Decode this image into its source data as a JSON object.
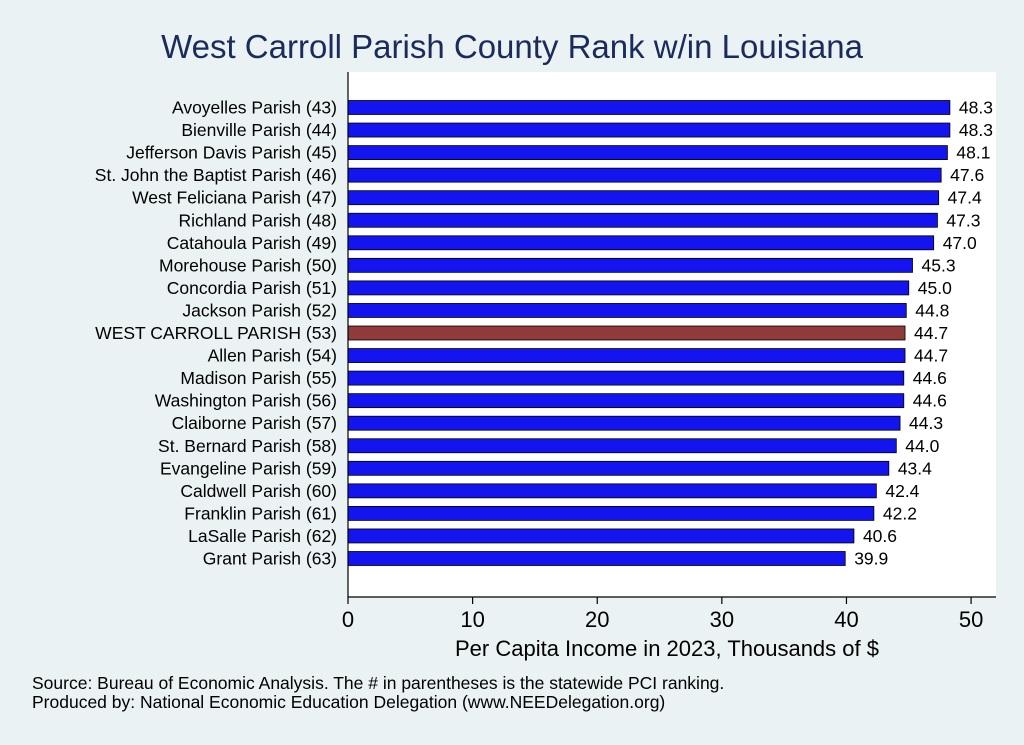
{
  "chart_data": {
    "type": "bar",
    "orientation": "horizontal",
    "title": "West Carroll Parish County Rank w/in Louisiana",
    "xlabel": "Per Capita Income in 2023, Thousands of $",
    "ylabel": "",
    "xlim": [
      0,
      52
    ],
    "xticks": [
      "0",
      "10",
      "20",
      "30",
      "40",
      "50"
    ],
    "categories": [
      "Avoyelles Parish (43)",
      "Bienville Parish (44)",
      "Jefferson Davis Parish (45)",
      "St. John the Baptist Parish (46)",
      "West Feliciana Parish (47)",
      "Richland Parish (48)",
      "Catahoula Parish (49)",
      "Morehouse Parish (50)",
      "Concordia Parish (51)",
      "Jackson Parish (52)",
      "WEST CARROLL PARISH (53)",
      "Allen Parish (54)",
      "Madison Parish (55)",
      "Washington Parish (56)",
      "Claiborne Parish (57)",
      "St. Bernard Parish (58)",
      "Evangeline Parish (59)",
      "Caldwell Parish (60)",
      "Franklin Parish (61)",
      "LaSalle Parish (62)",
      "Grant Parish (63)"
    ],
    "values": [
      48.3,
      48.3,
      48.1,
      47.6,
      47.4,
      47.3,
      47.0,
      45.3,
      45.0,
      44.8,
      44.7,
      44.7,
      44.6,
      44.6,
      44.3,
      44.0,
      43.4,
      42.4,
      42.2,
      40.6,
      39.9
    ],
    "value_labels": [
      "48.3",
      "48.3",
      "48.1",
      "47.6",
      "47.4",
      "47.3",
      "47.0",
      "45.3",
      "45.0",
      "44.8",
      "44.7",
      "44.7",
      "44.6",
      "44.6",
      "44.3",
      "44.0",
      "43.4",
      "42.4",
      "42.2",
      "40.6",
      "39.9"
    ],
    "highlight_index": 10,
    "colors": {
      "bar": "#1414f0",
      "highlight": "#8f3b3b",
      "axis": "#000000",
      "title": "#1a2b5c",
      "plot_bg": "#ffffff"
    }
  },
  "footer": {
    "source": "Source: Bureau of Economic Analysis. The # in parentheses is the statewide PCI ranking.",
    "producer": "Produced by: National Economic Education Delegation (www.NEEDelegation.org)"
  }
}
